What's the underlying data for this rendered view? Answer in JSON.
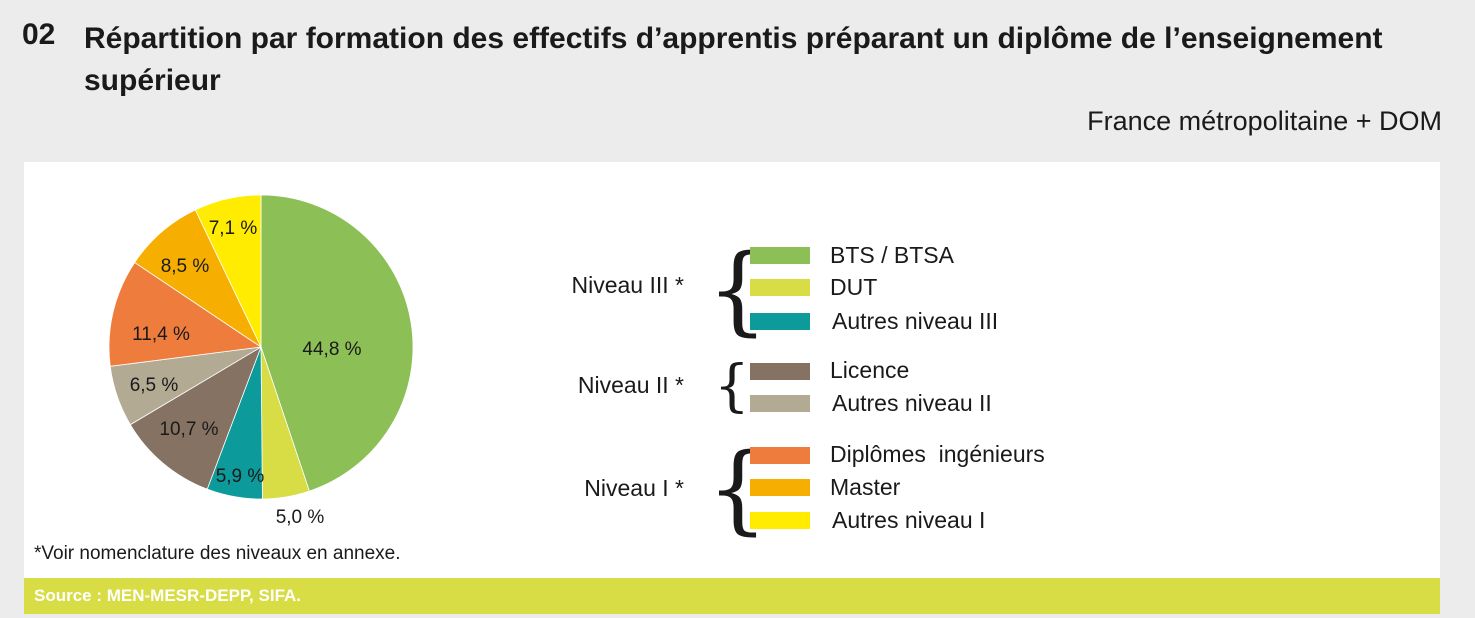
{
  "header": {
    "number": "02",
    "title": "Répartition par formation des effectifs d’apprentis préparant un diplôme de l’enseignement supérieur",
    "subtitle": "France métropolitaine + DOM"
  },
  "chart_data": {
    "type": "pie",
    "start_angle_deg": 0,
    "direction": "clockwise",
    "slices": [
      {
        "name": "BTS / BTSA",
        "value": 44.8,
        "label": "44,8 %",
        "color": "#8cbf55"
      },
      {
        "name": "DUT",
        "value": 5.0,
        "label": "5,0 %",
        "color": "#d8dc45"
      },
      {
        "name": "Autres niveau III",
        "value": 5.9,
        "label": "5,9 %",
        "color": "#0d9a9a"
      },
      {
        "name": "Licence",
        "value": 10.7,
        "label": "10,7 %",
        "color": "#857262"
      },
      {
        "name": "Autres niveau II",
        "value": 6.5,
        "label": "6,5 %",
        "color": "#b3aa93"
      },
      {
        "name": "Diplômes  ingénieurs",
        "value": 11.4,
        "label": "11,4 %",
        "color": "#ee7c3c"
      },
      {
        "name": "Master",
        "value": 8.5,
        "label": "8,5 %",
        "color": "#f6ae00"
      },
      {
        "name": "Autres niveau I",
        "value": 7.1,
        "label": "7,1 %",
        "color": "#ffec00"
      }
    ],
    "legend": {
      "placement": "right",
      "groups": [
        {
          "label": "Niveau III *",
          "items": [
            "BTS / BTSA",
            "DUT",
            "Autres niveau III"
          ]
        },
        {
          "label": "Niveau II *",
          "items": [
            "Licence",
            "Autres niveau II"
          ]
        },
        {
          "label": "Niveau I *",
          "items": [
            "Diplômes  ingénieurs",
            "Master",
            "Autres niveau I"
          ]
        }
      ]
    }
  },
  "footnote": "*Voir nomenclature des niveaux en annexe.",
  "source": "Source : MEN-MESR-DEPP, SIFA."
}
